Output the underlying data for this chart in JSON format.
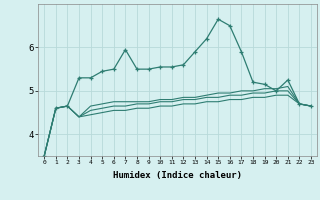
{
  "xlabel": "Humidex (Indice chaleur)",
  "x": [
    0,
    1,
    2,
    3,
    4,
    5,
    6,
    7,
    8,
    9,
    10,
    11,
    12,
    13,
    14,
    15,
    16,
    17,
    18,
    19,
    20,
    21,
    22,
    23
  ],
  "line1": [
    3.5,
    4.6,
    4.65,
    5.3,
    5.3,
    5.45,
    5.5,
    5.95,
    5.5,
    5.5,
    5.55,
    5.55,
    5.6,
    5.9,
    6.2,
    6.65,
    6.5,
    5.9,
    5.2,
    5.15,
    5.0,
    5.25,
    4.7,
    4.65
  ],
  "line2": [
    3.5,
    4.6,
    4.65,
    4.4,
    4.65,
    4.7,
    4.75,
    4.75,
    4.75,
    4.75,
    4.8,
    4.8,
    4.85,
    4.85,
    4.9,
    4.95,
    4.95,
    5.0,
    5.0,
    5.05,
    5.05,
    5.1,
    4.7,
    4.65
  ],
  "line3": [
    3.5,
    4.6,
    4.65,
    4.4,
    4.55,
    4.6,
    4.65,
    4.65,
    4.7,
    4.7,
    4.75,
    4.75,
    4.8,
    4.8,
    4.85,
    4.85,
    4.9,
    4.9,
    4.95,
    4.95,
    5.0,
    5.0,
    4.7,
    4.65
  ],
  "line4": [
    3.5,
    4.6,
    4.65,
    4.4,
    4.45,
    4.5,
    4.55,
    4.55,
    4.6,
    4.6,
    4.65,
    4.65,
    4.7,
    4.7,
    4.75,
    4.75,
    4.8,
    4.8,
    4.85,
    4.85,
    4.9,
    4.9,
    4.7,
    4.65
  ],
  "line_color": "#2e7d72",
  "bg_color": "#d6f0f0",
  "grid_color": "#b8dada",
  "ylim": [
    3.5,
    7.0
  ],
  "yticks": [
    4,
    5,
    6
  ],
  "xticks": [
    0,
    1,
    2,
    3,
    4,
    5,
    6,
    7,
    8,
    9,
    10,
    11,
    12,
    13,
    14,
    15,
    16,
    17,
    18,
    19,
    20,
    21,
    22,
    23
  ]
}
